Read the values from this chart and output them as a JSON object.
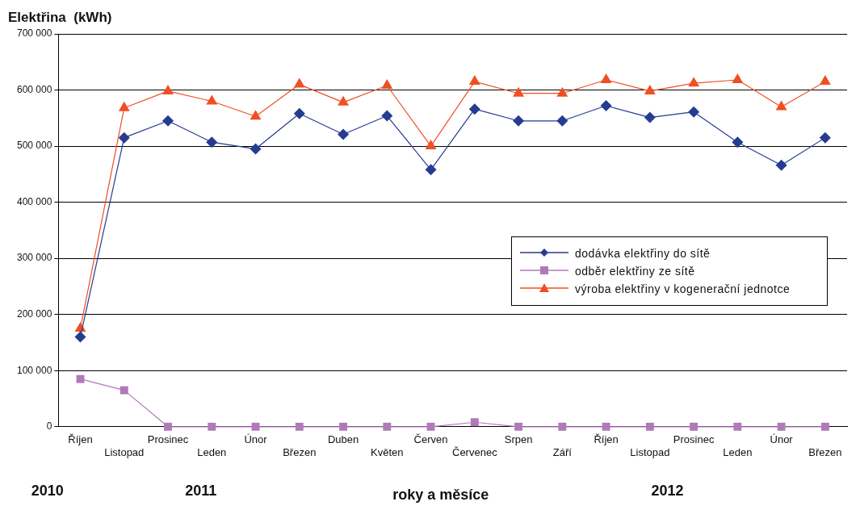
{
  "chart_data": {
    "type": "line",
    "ylabel": "Elektřina  (kWh)",
    "xlabel": "roky a měsíce",
    "categories": [
      "Říjen",
      "Listopad",
      "Prosinec",
      "Leden",
      "Únor",
      "Březen",
      "Duben",
      "Květen",
      "Červen",
      "Červenec",
      "Srpen",
      "Září",
      "Říjen",
      "Listopad",
      "Prosinec",
      "Leden",
      "Únor",
      "Březen"
    ],
    "series": [
      {
        "name": "dodávka elektřiny do sítě",
        "color": "#253c91",
        "marker": "diamond",
        "values": [
          160000,
          515000,
          545000,
          507000,
          495000,
          558000,
          521000,
          554000,
          458000,
          566000,
          545000,
          545000,
          572000,
          551000,
          561000,
          507000,
          466000,
          515000
        ]
      },
      {
        "name": "odběr elektřiny ze sítě",
        "color": "#b07ab8",
        "marker": "square",
        "values": [
          85000,
          65000,
          0,
          0,
          0,
          0,
          0,
          0,
          0,
          8000,
          0,
          0,
          0,
          0,
          0,
          0,
          0,
          0
        ]
      },
      {
        "name": "výroba elektřiny v kogenerační jednotce",
        "color": "#f04e23",
        "marker": "triangle",
        "values": [
          175000,
          568000,
          598000,
          580000,
          553000,
          610000,
          578000,
          608000,
          500000,
          615000,
          594000,
          594000,
          618000,
          598000,
          612000,
          618000,
          570000,
          615000
        ]
      }
    ],
    "ylim": [
      0,
      700000
    ],
    "yticks": [
      0,
      {
        "value": 100000,
        "label": "100 000"
      },
      {
        "value": 200000,
        "label": "200 000"
      },
      {
        "value": 300000,
        "label": "300 000"
      },
      {
        "value": 400000,
        "label": "400 000"
      },
      {
        "value": 500000,
        "label": "500 000"
      },
      {
        "value": 600000,
        "label": "600 000"
      },
      {
        "value": 700000,
        "label": "700 000"
      }
    ],
    "grid": "y",
    "legend": "right",
    "annotations": [
      "2010",
      "2011",
      "2012"
    ]
  }
}
